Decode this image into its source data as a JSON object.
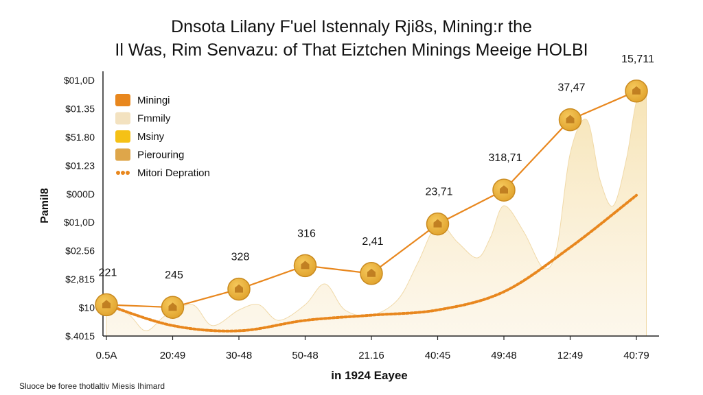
{
  "chart_data": {
    "type": "line",
    "title": "Dnsota Lilany F'uel Istennaly Rji8s, Mining:r the",
    "subtitle": "Il Was, Rim Senvazu: of That Eiztchen Minings Meeige HOLBI",
    "xlabel": "in 1924 Eayee",
    "ylabel": "Pamil8",
    "source": "Sluoce be foree thotlaltiv Miesis Ihimard",
    "categories": [
      "0.5A",
      "20:49",
      "30-48",
      "50-48",
      "21.16",
      "40:45",
      "49:48",
      "12:49",
      "40:79"
    ],
    "y_tick_labels": [
      "$01,0D",
      "$01.35",
      "$51.80",
      "$01.23",
      "$000D",
      "$01,0D",
      "$02.56",
      "$2,815",
      "$10",
      "$.4015"
    ],
    "ylim": [
      0,
      100
    ],
    "legend": {
      "position": "top-left",
      "entries": [
        {
          "label": "Miningi",
          "color": "#e8871e",
          "kind": "box"
        },
        {
          "label": "Fmmily",
          "color": "#f3e2c0",
          "kind": "box"
        },
        {
          "label": "Msiny",
          "color": "#f5c116",
          "kind": "box"
        },
        {
          "label": "Pierouring",
          "color": "#dea64a",
          "kind": "box"
        },
        {
          "label": "Mitori Depration",
          "color": "#e8871e",
          "kind": "dots"
        }
      ]
    },
    "series": [
      {
        "name": "Miningi",
        "kind": "line-markers",
        "color": "#e8871e",
        "values": [
          12,
          11,
          18,
          27,
          24,
          43,
          56,
          83,
          94
        ],
        "point_labels": [
          "221",
          "245",
          "328",
          "316",
          "2,41",
          "23,71",
          "318,71",
          "37,47",
          "15,711"
        ]
      },
      {
        "name": "Mitori Depration",
        "kind": "dotted-line",
        "color": "#e8871e",
        "values": [
          12,
          4,
          2,
          6,
          8,
          10,
          17,
          34,
          54
        ]
      },
      {
        "name": "Fmmily",
        "kind": "area",
        "color": "#f3e2c0",
        "x": [
          0,
          0.35,
          0.6,
          0.9,
          1.3,
          1.6,
          2.0,
          2.3,
          2.6,
          3.0,
          3.3,
          3.6,
          4.0,
          4.4,
          4.7,
          5.0,
          5.3,
          5.6,
          5.8,
          6.0,
          6.3,
          6.6,
          6.8,
          7.0,
          7.25,
          7.45,
          7.65,
          7.85,
          8.0,
          8.15
        ],
        "values": [
          14,
          8,
          2,
          8,
          12,
          4,
          10,
          12,
          6,
          12,
          20,
          10,
          8,
          14,
          28,
          43,
          36,
          30,
          38,
          50,
          40,
          26,
          34,
          70,
          83,
          60,
          50,
          68,
          90,
          95
        ]
      }
    ]
  }
}
